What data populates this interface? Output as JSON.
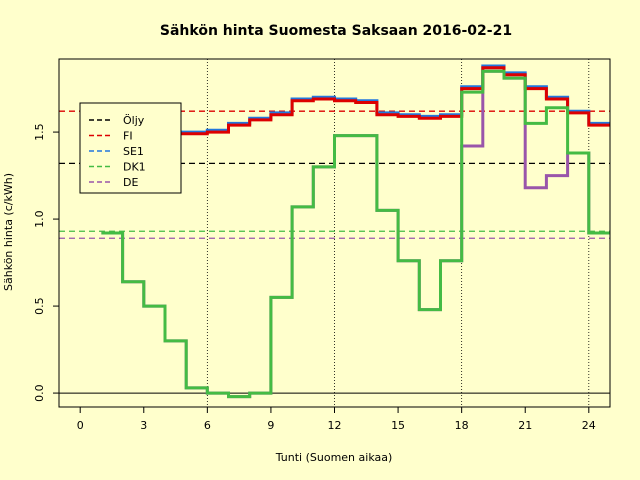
{
  "chart_data": {
    "type": "line",
    "title": "Sähkön hinta Suomesta Saksaan 2016-02-21",
    "xlabel": "Tunti (Suomen aikaa)",
    "ylabel": "Sähkön hinta (c/kWh)",
    "xlim": [
      -1,
      25
    ],
    "ylim": [
      -0.08,
      1.92
    ],
    "xticks": [
      0,
      3,
      6,
      9,
      12,
      15,
      18,
      21,
      24
    ],
    "yticks": [
      0.0,
      0.5,
      1.0,
      1.5
    ],
    "ytick_labels": [
      "0.0",
      "0.5",
      "1.0",
      "1.5"
    ],
    "vlines": [
      6,
      12,
      18,
      24
    ],
    "grid": false,
    "legend_position": "left",
    "hours": [
      1,
      2,
      3,
      4,
      5,
      6,
      7,
      8,
      9,
      10,
      11,
      12,
      13,
      14,
      15,
      16,
      17,
      18,
      19,
      20,
      21,
      22,
      23,
      24
    ],
    "series": [
      {
        "name": "Öljy",
        "color": "#000000",
        "style": "dashed",
        "constant": 1.32
      },
      {
        "name": "FI",
        "color": "#DD0000",
        "style": "dashed",
        "constant": 1.62,
        "values": [
          1.46,
          1.47,
          1.48,
          1.49,
          1.49,
          1.5,
          1.54,
          1.57,
          1.6,
          1.68,
          1.69,
          1.68,
          1.67,
          1.6,
          1.59,
          1.58,
          1.59,
          1.75,
          1.87,
          1.83,
          1.75,
          1.69,
          1.61,
          1.54
        ]
      },
      {
        "name": "SE1",
        "color": "#2277DD",
        "style": "dashed",
        "values": [
          1.47,
          1.48,
          1.49,
          1.5,
          1.5,
          1.51,
          1.55,
          1.58,
          1.61,
          1.69,
          1.7,
          1.69,
          1.68,
          1.61,
          1.6,
          1.59,
          1.6,
          1.76,
          1.88,
          1.84,
          1.76,
          1.7,
          1.62,
          1.55
        ]
      },
      {
        "name": "DK1",
        "color": "#44BB44",
        "style": "dashed",
        "constant": 0.93,
        "values": [
          0.92,
          0.64,
          0.5,
          0.3,
          0.03,
          0.0,
          -0.02,
          0.0,
          0.55,
          1.07,
          1.3,
          1.48,
          1.48,
          1.05,
          0.76,
          0.48,
          0.76,
          1.73,
          1.85,
          1.81,
          1.55,
          1.64,
          1.38,
          0.92
        ]
      },
      {
        "name": "DE",
        "color": "#9955AA",
        "style": "dashed",
        "constant": 0.89,
        "values": [
          0.92,
          0.64,
          0.5,
          0.3,
          0.03,
          0.0,
          -0.02,
          0.0,
          0.55,
          1.07,
          1.3,
          1.48,
          1.48,
          1.05,
          0.76,
          0.48,
          0.76,
          1.42,
          1.85,
          1.81,
          1.18,
          1.25,
          1.38,
          0.92
        ]
      }
    ]
  }
}
